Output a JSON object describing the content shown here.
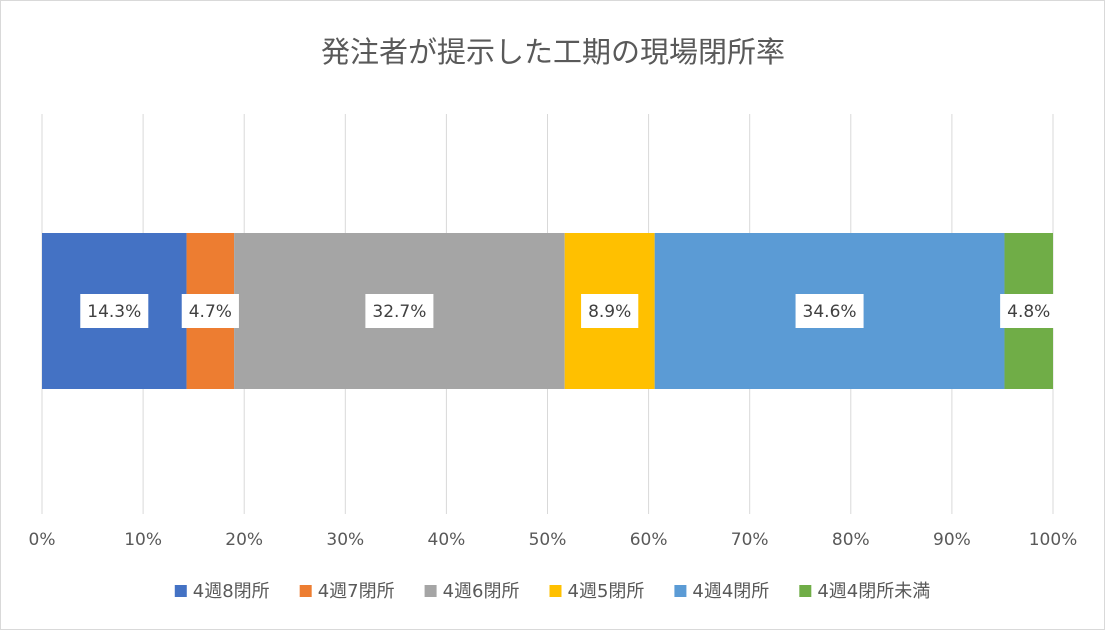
{
  "chart_data": {
    "type": "bar",
    "orientation": "horizontal",
    "stacked": "percent",
    "title": "発注者が提示した工期の現場閉所率",
    "categories": [
      ""
    ],
    "series": [
      {
        "name": "4週8閉所",
        "values": [
          14.3
        ],
        "label": "14.3%",
        "color": "#4472C4"
      },
      {
        "name": "4週7閉所",
        "values": [
          4.7
        ],
        "label": "4.7%",
        "color": "#ED7D31"
      },
      {
        "name": "4週6閉所",
        "values": [
          32.7
        ],
        "label": "32.7%",
        "color": "#A5A5A5"
      },
      {
        "name": "4週5閉所",
        "values": [
          8.9
        ],
        "label": "8.9%",
        "color": "#FFC000"
      },
      {
        "name": "4週4閉所",
        "values": [
          34.6
        ],
        "label": "34.6%",
        "color": "#5B9BD5"
      },
      {
        "name": "4週4閉所未満",
        "values": [
          4.8
        ],
        "label": "4.8%",
        "color": "#70AD47"
      }
    ],
    "x_ticks": [
      "0%",
      "10%",
      "20%",
      "30%",
      "40%",
      "50%",
      "60%",
      "70%",
      "80%",
      "90%",
      "100%"
    ],
    "xlim": [
      0,
      100
    ],
    "grid": "vertical",
    "legend": "bottom"
  }
}
